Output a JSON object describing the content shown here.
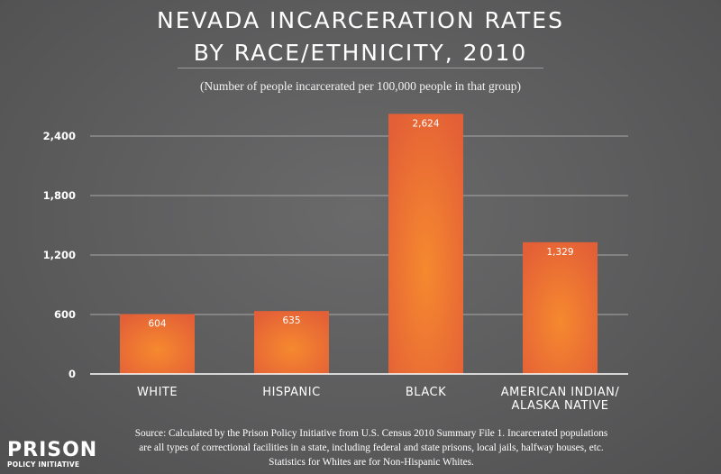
{
  "chart_data": {
    "type": "bar",
    "title": [
      "NEVADA INCARCERATION RATES",
      "BY RACE/ETHNICITY, 2010"
    ],
    "subtitle": "(Number of people incarcerated per 100,000 people in that group)",
    "categories": [
      [
        "WHITE"
      ],
      [
        "HISPANIC"
      ],
      [
        "BLACK"
      ],
      [
        "AMERICAN INDIAN/",
        "ALASKA NATIVE"
      ]
    ],
    "values": [
      604,
      635,
      2624,
      1329
    ],
    "data_labels": [
      "604",
      "635",
      "2,624",
      "1,329"
    ],
    "yticks": [
      0,
      600,
      1200,
      1800,
      2400
    ],
    "ytick_labels": [
      "0",
      "600",
      "1,200",
      "1,800",
      "2,400"
    ],
    "ylim": [
      0,
      2700
    ],
    "grid": true,
    "bar_colors": {
      "edge": "#e35f37",
      "center": "#f6892f"
    }
  },
  "source": [
    "Source: Calculated by the Prison Policy Initiative from U.S. Census 2010 Summary File 1. Incarcerated populations",
    "are all types of correctional facilities in a state, including federal and state prisons, local jails, halfway houses, etc.",
    "Statistics for Whites are for Non-Hispanic Whites."
  ],
  "logo": {
    "line1": "PRISON",
    "line2": "POLICY INITIATIVE"
  }
}
